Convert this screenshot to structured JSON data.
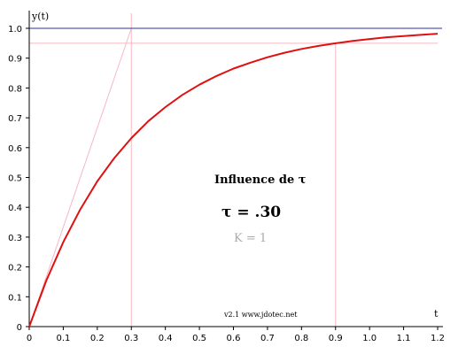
{
  "chart_data": {
    "type": "line",
    "ylabel": "y(t)",
    "xlabel": "t",
    "xlim": [
      0,
      1.2
    ],
    "ylim": [
      0,
      1.0
    ],
    "x_ticks": [
      "0",
      "0.1",
      "0.2",
      "0.3",
      "0.4",
      "0.5",
      "0.6",
      "0.7",
      "0.8",
      "0.9",
      "1.0",
      "1.1",
      "1.2"
    ],
    "y_ticks": [
      "0",
      "0.1",
      "0.2",
      "0.3",
      "0.4",
      "0.5",
      "0.6",
      "0.7",
      "0.8",
      "0.9",
      "1.0"
    ],
    "grid": false,
    "tau": 0.3,
    "gain": 1,
    "series": [
      {
        "color": "#e01010",
        "x": [
          0,
          0.05,
          0.1,
          0.15,
          0.2,
          0.25,
          0.3,
          0.35,
          0.4,
          0.45,
          0.5,
          0.55,
          0.6,
          0.65,
          0.7,
          0.75,
          0.8,
          0.85,
          0.9,
          0.95,
          1.0,
          1.05,
          1.1,
          1.15,
          1.2
        ],
        "y": [
          0,
          0.154,
          0.283,
          0.393,
          0.487,
          0.565,
          0.632,
          0.689,
          0.736,
          0.777,
          0.811,
          0.84,
          0.865,
          0.885,
          0.903,
          0.918,
          0.931,
          0.941,
          0.95,
          0.958,
          0.964,
          0.97,
          0.974,
          0.978,
          0.982
        ]
      }
    ],
    "reference_lines": {
      "final_value": 1.0,
      "value_at_3tau": 0.95,
      "tangent_end_x": 0.3,
      "three_tau_x": 0.9,
      "colors": {
        "final": "#3030a0",
        "guide": "#f5b8c4"
      }
    },
    "annotations": {
      "title": "Influence de τ",
      "value": "τ = .30",
      "k": "K = 1",
      "credit": "v2.1 www.jdotec.net"
    }
  }
}
